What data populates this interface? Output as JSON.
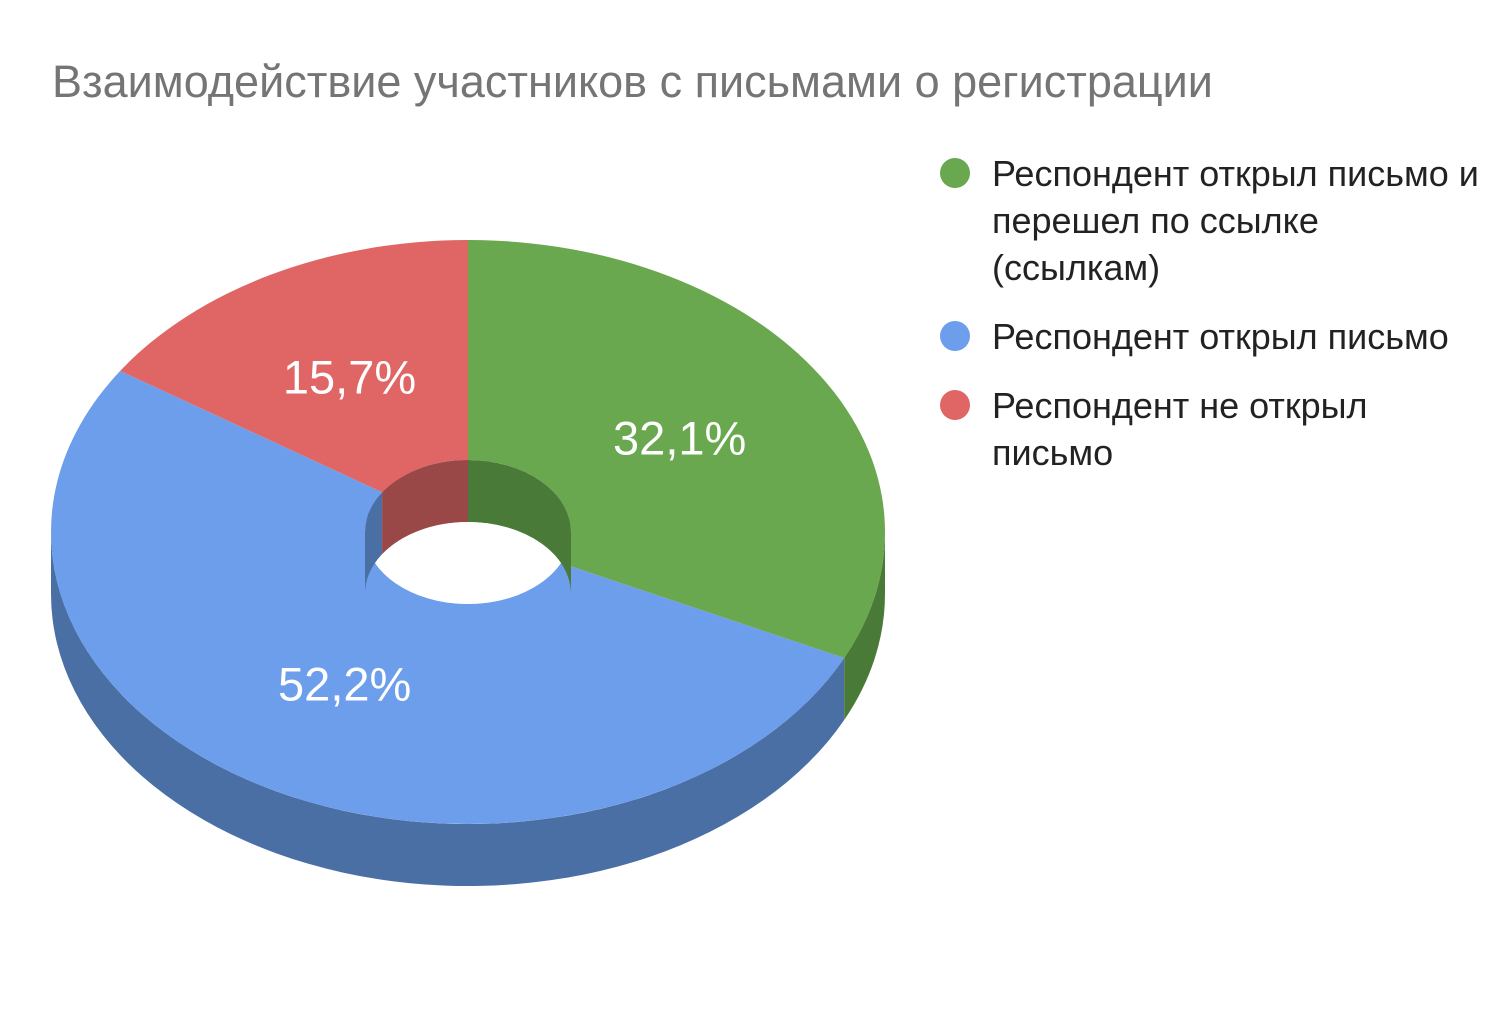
{
  "chart_data": {
    "type": "pie",
    "title": "Взаимодействие участников с письмами о регистрации",
    "legend_position": "right",
    "style": "3d-donut",
    "slices": [
      {
        "label": "Респондент открыл письмо и перешел по ссылке (ссылкам)",
        "value": 32.1,
        "display": "32,1%",
        "color": "#6aa84f",
        "side_color": "#4a7a37"
      },
      {
        "label": "Респондент открыл письмо",
        "value": 52.2,
        "display": "52,2%",
        "color": "#6d9eeb",
        "side_color": "#4a6fa5"
      },
      {
        "label": "Респондент не открыл письмо",
        "value": 15.7,
        "display": "15,7%",
        "color": "#e06666",
        "side_color": "#994747"
      }
    ]
  }
}
